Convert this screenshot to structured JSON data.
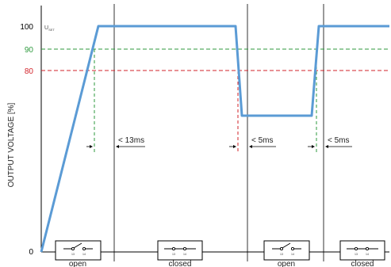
{
  "diagram": {
    "y_axis_label": "OUTPUT VOLTAGE [%]",
    "y_ticks": [
      {
        "value": "100",
        "color": "#000000"
      },
      {
        "value": "90",
        "color": "#2e9a3e"
      },
      {
        "value": "80",
        "color": "#d2232a"
      },
      {
        "value": "0",
        "color": "#000000"
      }
    ],
    "uset_label": "U",
    "uset_subscript": "SET",
    "timing_labels": [
      "< 13ms",
      "< 5ms",
      "< 5ms"
    ],
    "switch_states": [
      "open",
      "closed",
      "open",
      "closed"
    ],
    "pin_label_a": "13",
    "pin_label_b": "14",
    "colors": {
      "voltage_line": "#5b9bd5",
      "level_90": "#2e9a3e",
      "level_80": "#d2232a",
      "axis": "#000000"
    }
  }
}
